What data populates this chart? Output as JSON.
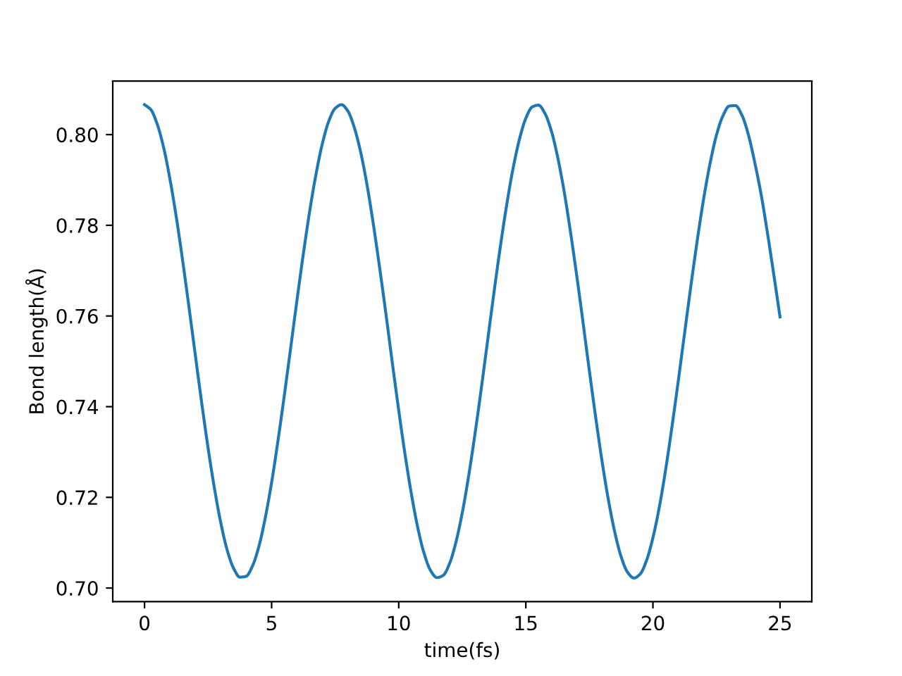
{
  "chart_data": {
    "type": "line",
    "xlabel": "time(fs)",
    "ylabel": "Bond length(Å)",
    "x": [
      0,
      0.25,
      0.5,
      0.75,
      1,
      1.25,
      1.5,
      1.75,
      2,
      2.25,
      2.5,
      2.75,
      3,
      3.25,
      3.5,
      3.75,
      4,
      4.25,
      4.5,
      4.75,
      5,
      5.25,
      5.5,
      5.75,
      6,
      6.25,
      6.5,
      6.75,
      7,
      7.25,
      7.5,
      7.75,
      8,
      8.25,
      8.5,
      8.75,
      9,
      9.25,
      9.5,
      9.75,
      10,
      10.25,
      10.5,
      10.75,
      11,
      11.25,
      11.5,
      11.75,
      12,
      12.25,
      12.5,
      12.75,
      13,
      13.25,
      13.5,
      13.75,
      14,
      14.25,
      14.5,
      14.75,
      15,
      15.25,
      15.5,
      15.75,
      16,
      16.25,
      16.5,
      16.75,
      17,
      17.25,
      17.5,
      17.75,
      18,
      18.25,
      18.5,
      18.75,
      19,
      19.25,
      19.5,
      19.75,
      20,
      20.25,
      20.5,
      20.75,
      21,
      21.25,
      21.5,
      21.75,
      22,
      22.25,
      22.5,
      22.75,
      23,
      23.25,
      23.5,
      23.75,
      24,
      24.25,
      24.5,
      24.75,
      25
    ],
    "series": [
      {
        "color": "#1f77b4",
        "values": [
          0.8066,
          0.8055,
          0.8023,
          0.7972,
          0.7902,
          0.7818,
          0.7722,
          0.7619,
          0.7513,
          0.7408,
          0.7309,
          0.722,
          0.7144,
          0.7084,
          0.7044,
          0.7024,
          0.7026,
          0.7049,
          0.7092,
          0.7155,
          0.7233,
          0.7325,
          0.7425,
          0.753,
          0.7636,
          0.7738,
          0.7832,
          0.7914,
          0.7981,
          0.803,
          0.8058,
          0.8066,
          0.8052,
          0.8016,
          0.7962,
          0.789,
          0.7803,
          0.7706,
          0.7603,
          0.7496,
          0.7392,
          0.7294,
          0.7207,
          0.7133,
          0.7076,
          0.7039,
          0.7023,
          0.7028,
          0.7054,
          0.7101,
          0.7166,
          0.7247,
          0.734,
          0.7441,
          0.7547,
          0.7653,
          0.7754,
          0.7846,
          0.7926,
          0.799,
          0.8036,
          0.8061,
          0.8065,
          0.8047,
          0.8009,
          0.7951,
          0.7877,
          0.7788,
          0.769,
          0.7586,
          0.7479,
          0.7376,
          0.7279,
          0.7194,
          0.7123,
          0.7069,
          0.7035,
          0.7022,
          0.7031,
          0.7061,
          0.7111,
          0.7178,
          0.7261,
          0.7356,
          0.7458,
          0.7564,
          0.7669,
          0.7769,
          0.786,
          0.7937,
          0.7999,
          0.8041,
          0.8063,
          0.8064,
          0.8043,
          0.8001,
          0.794,
          0.787,
          0.7785,
          0.7693,
          0.7598
        ]
      }
    ],
    "xlim": [
      -1.25,
      26.25
    ],
    "ylim": [
      0.697,
      0.8118
    ],
    "xticks": [
      0,
      5,
      10,
      15,
      20,
      25
    ],
    "yticks": [
      {
        "value": 0.7,
        "label": "0.70"
      },
      {
        "value": 0.72,
        "label": "0.72"
      },
      {
        "value": 0.74,
        "label": "0.74"
      },
      {
        "value": 0.76,
        "label": "0.76"
      },
      {
        "value": 0.78,
        "label": "0.78"
      },
      {
        "value": 0.8,
        "label": "0.80"
      }
    ]
  }
}
